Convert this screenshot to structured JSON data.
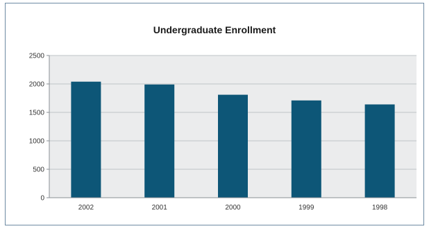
{
  "chart_data": {
    "type": "bar",
    "title": "Undergraduate Enrollment",
    "xlabel": "",
    "ylabel": "",
    "categories": [
      "2002",
      "2001",
      "2000",
      "1999",
      "1998"
    ],
    "values": [
      2040,
      1990,
      1810,
      1710,
      1640
    ],
    "ylim": [
      0,
      2500
    ],
    "yticks": [
      "0",
      "500",
      "1000",
      "1500",
      "2000",
      "2500"
    ],
    "grid": true,
    "legend": false,
    "colors": {
      "bar": "#0d5677",
      "plot_bg": "#ebeced",
      "grid": "#bfc3c7",
      "axis": "#8a8f94"
    }
  }
}
